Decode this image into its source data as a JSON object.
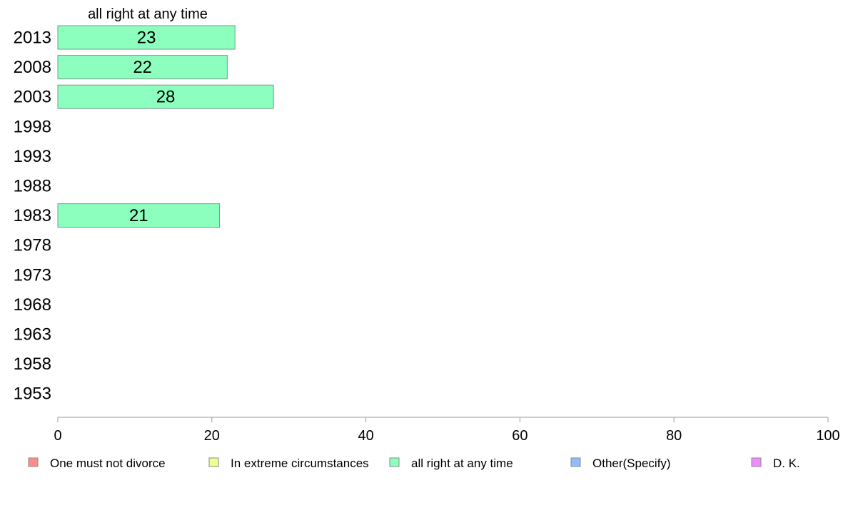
{
  "chart_data": {
    "type": "bar",
    "orientation": "horizontal",
    "title": "all right at any time",
    "categories": [
      "2013",
      "2008",
      "2003",
      "1998",
      "1993",
      "1988",
      "1983",
      "1978",
      "1973",
      "1968",
      "1963",
      "1958",
      "1953"
    ],
    "values": [
      23,
      22,
      28,
      null,
      null,
      null,
      21,
      null,
      null,
      null,
      null,
      null,
      null
    ],
    "value_labels": [
      "23",
      "22",
      "28",
      "",
      "",
      "",
      "21",
      "",
      "",
      "",
      "",
      "",
      ""
    ],
    "xlim": [
      0,
      100
    ],
    "xticks": [
      0,
      20,
      40,
      60,
      80,
      100
    ],
    "xtick_labels": [
      "0",
      "20",
      "40",
      "60",
      "80",
      "100"
    ],
    "xlabel": "",
    "ylabel": "",
    "grid": false,
    "bar_color": "#8cffbf",
    "bar_edge_color": "#7a9a88",
    "legend": {
      "placement": "bottom",
      "entries": [
        {
          "label": "One must not divorce",
          "color": "#ff8c8c"
        },
        {
          "label": "In extreme circumstances",
          "color": "#efff8c"
        },
        {
          "label": "all right at any time",
          "color": "#8cffbf"
        },
        {
          "label": "Other(Specify)",
          "color": "#8cbfff"
        },
        {
          "label": "D. K.",
          "color": "#ef8cff"
        }
      ]
    }
  }
}
